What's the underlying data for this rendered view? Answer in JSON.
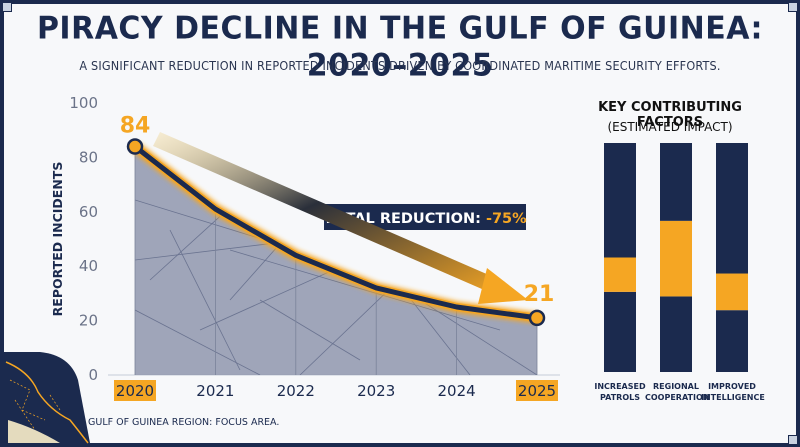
{
  "title": "PIRACY DECLINE IN THE GULF OF GUINEA: 2020–2025",
  "subtitle": "A SIGNIFICANT REDUCTION IN REPORTED INCIDENTS DRIVEN BY COORDINATED MARITIME SECURITY EFFORTS.",
  "chart_data": [
    {
      "type": "area",
      "x": [
        "2020",
        "2021",
        "2022",
        "2023",
        "2024",
        "2025"
      ],
      "y": [
        84,
        61,
        44,
        32,
        25,
        21
      ],
      "ylabel": "REPORTED INCIDENTS",
      "xlabel": "",
      "ylim": [
        0,
        100
      ],
      "yticks": [
        0,
        20,
        40,
        60,
        80,
        100
      ],
      "highlighted_x": [
        "2020",
        "2025"
      ],
      "start_label": "84",
      "end_label": "21",
      "annotation": "TOTAL REDUCTION: -75%",
      "colors": {
        "line": "#1b2a4e",
        "glow": "#f5a623",
        "area": "#8f97ad",
        "accent": "#f5a623"
      }
    },
    {
      "type": "bar",
      "title": "KEY CONTRIBUTING FACTORS",
      "subtitle": "(ESTIMATED IMPACT)",
      "stacked": true,
      "categories": [
        "INCREASED PATROLS",
        "REGIONAL COOPERATION",
        "IMPROVED INTELLIGENCE"
      ],
      "category_lines": [
        [
          "INCREASED",
          "PATROLS"
        ],
        [
          "REGIONAL",
          "COOPERATION"
        ],
        [
          "IMPROVED",
          "INTELLIGENCE"
        ]
      ],
      "ylim": [
        0,
        100
      ],
      "series": [
        {
          "values": [
            35,
            33,
            27
          ]
        },
        {
          "values": [
            15,
            33,
            16
          ]
        },
        {
          "values": [
            50,
            34,
            57
          ]
        }
      ],
      "colors": {
        "dark": "#1b2a4e",
        "accent": "#f5a623"
      }
    }
  ],
  "footnote": "GULF OF GUINEA REGION: FOCUS AREA."
}
